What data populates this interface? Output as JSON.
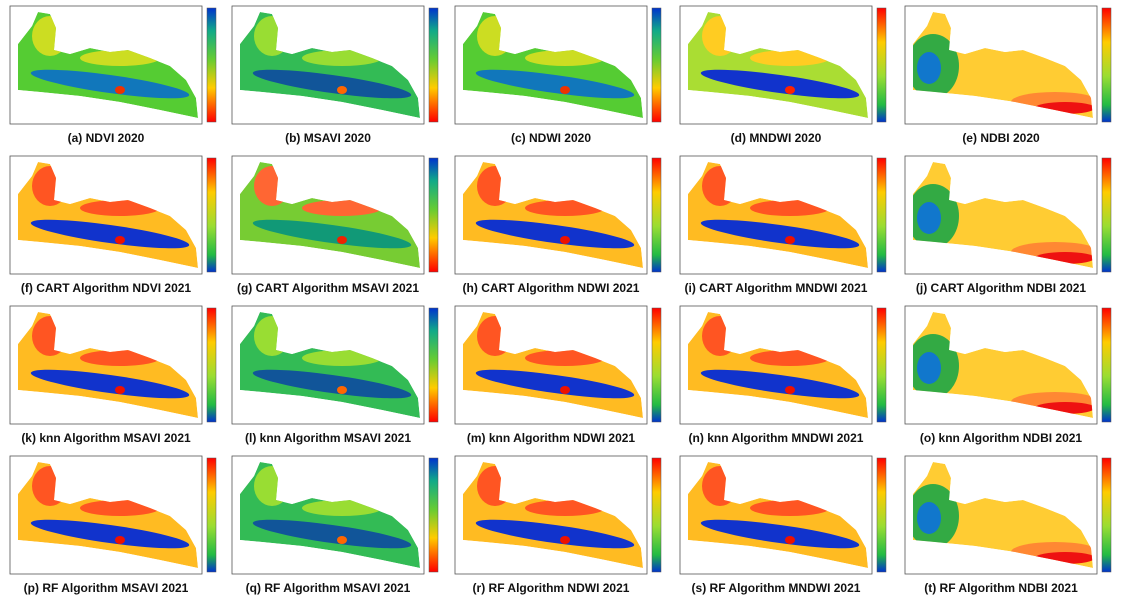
{
  "panels": [
    {
      "caption": "(a) NDVI 2020"
    },
    {
      "caption": "(b) MSAVI 2020"
    },
    {
      "caption": "(c) NDWI 2020"
    },
    {
      "caption": "(d) MNDWI 2020"
    },
    {
      "caption": "(e) NDBI 2020"
    },
    {
      "caption": "(f) CART Algorithm NDVI 2021"
    },
    {
      "caption": "(g) CART Algorithm MSAVI 2021"
    },
    {
      "caption": "(h) CART Algorithm NDWI 2021"
    },
    {
      "caption": "(i) CART Algorithm MNDWI 2021"
    },
    {
      "caption": "(j) CART Algorithm NDBI 2021"
    },
    {
      "caption": "(k) knn Algorithm MSAVI 2021"
    },
    {
      "caption": "(l) knn Algorithm MSAVI 2021"
    },
    {
      "caption": "(m) knn Algorithm NDWI 2021"
    },
    {
      "caption": "(n) knn Algorithm MNDWI 2021"
    },
    {
      "caption": "(o) knn Algorithm NDBI 2021"
    },
    {
      "caption": "(p) RF Algorithm MSAVI 2021"
    },
    {
      "caption": "(q) RF Algorithm MSAVI 2021"
    },
    {
      "caption": "(r) RF Algorithm NDWI 2021"
    },
    {
      "caption": "(s) RF Algorithm MNDWI 2021"
    },
    {
      "caption": "(t) RF Algorithm NDBI 2021"
    }
  ]
}
